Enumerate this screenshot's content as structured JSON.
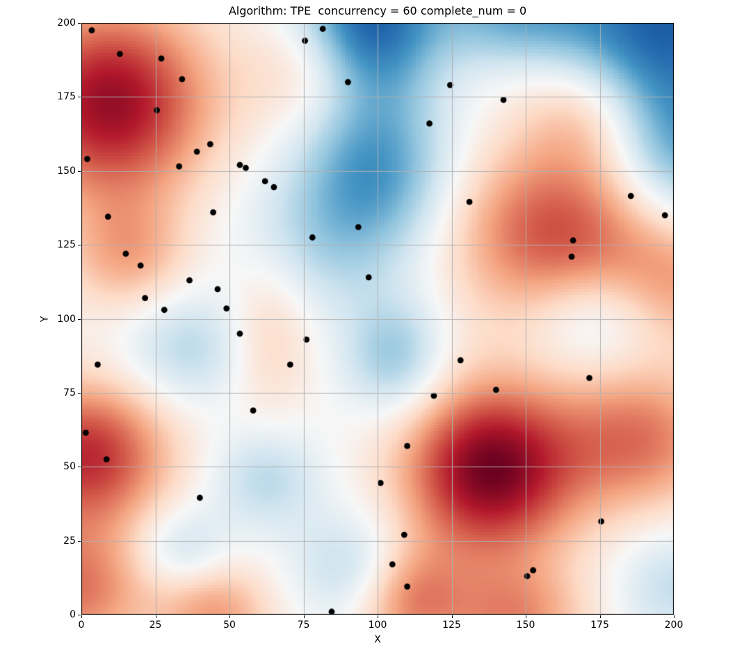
{
  "figure": {
    "background": "#ffffff"
  },
  "chart_data": {
    "type": "heatmap+scatter",
    "title": "Algorithm: TPE  concurrency = 60 complete_num = 0",
    "xlabel": "X",
    "ylabel": "Y",
    "xlim": [
      0,
      200
    ],
    "ylim": [
      0,
      200
    ],
    "xticks": [
      0,
      25,
      50,
      75,
      100,
      125,
      150,
      175,
      200
    ],
    "yticks": [
      0,
      25,
      50,
      75,
      100,
      125,
      150,
      175,
      200
    ],
    "grid": true,
    "grid_color": "#b0b0b0",
    "spine_color": "#000000",
    "marker": {
      "shape": "circle",
      "color": "#000000",
      "radius_px": 4.4
    },
    "scatter_points": [
      [
        3.5,
        197.5
      ],
      [
        13,
        189.5
      ],
      [
        27,
        188
      ],
      [
        34,
        181
      ],
      [
        25.5,
        170.5
      ],
      [
        81.5,
        198
      ],
      [
        75.5,
        194
      ],
      [
        90,
        180
      ],
      [
        2,
        154
      ],
      [
        43.5,
        159
      ],
      [
        39,
        156.5
      ],
      [
        33,
        151.5
      ],
      [
        53.5,
        152
      ],
      [
        55.5,
        151
      ],
      [
        62,
        146.5
      ],
      [
        65,
        144.5
      ],
      [
        44.5,
        136
      ],
      [
        9,
        134.5
      ],
      [
        15,
        122
      ],
      [
        20,
        118
      ],
      [
        36.5,
        113
      ],
      [
        21.5,
        107
      ],
      [
        28,
        103
      ],
      [
        49,
        103.5
      ],
      [
        46,
        110
      ],
      [
        78,
        127.5
      ],
      [
        93.5,
        131
      ],
      [
        97,
        114
      ],
      [
        124.5,
        179
      ],
      [
        142.5,
        174
      ],
      [
        117.5,
        166
      ],
      [
        131,
        139.5
      ],
      [
        185.5,
        141.5
      ],
      [
        197,
        135
      ],
      [
        166,
        126.5
      ],
      [
        165.5,
        121
      ],
      [
        53.5,
        95
      ],
      [
        76,
        93
      ],
      [
        70.5,
        84.5
      ],
      [
        5.5,
        84.5
      ],
      [
        58,
        69
      ],
      [
        1.5,
        61.5
      ],
      [
        8.5,
        52.5
      ],
      [
        40,
        39.5
      ],
      [
        84.5,
        1
      ],
      [
        128,
        86
      ],
      [
        171.5,
        80
      ],
      [
        140,
        76
      ],
      [
        119,
        74
      ],
      [
        110,
        57
      ],
      [
        101,
        44.5
      ],
      [
        175.5,
        31.5
      ],
      [
        109,
        27
      ],
      [
        105,
        17
      ],
      [
        110,
        9.5
      ],
      [
        152.5,
        15
      ],
      [
        150.5,
        13
      ]
    ],
    "heatmap_field_gaussians": [
      {
        "x": 10,
        "y": 173,
        "sx": 24,
        "sy": 24,
        "a": 0.88
      },
      {
        "x": 2,
        "y": 54,
        "sx": 20,
        "sy": 18,
        "a": 0.75
      },
      {
        "x": 138,
        "y": 49,
        "sx": 21,
        "sy": 21,
        "a": 0.97
      },
      {
        "x": 161,
        "y": 129,
        "sx": 26,
        "sy": 22,
        "a": 0.66
      },
      {
        "x": 80,
        "y": 183,
        "sx": 16,
        "sy": 14,
        "a": 0.28
      },
      {
        "x": 110,
        "y": 6,
        "sx": 13,
        "sy": 14,
        "a": 0.5
      },
      {
        "x": 45,
        "y": 0,
        "sx": 14,
        "sy": 13,
        "a": 0.42
      },
      {
        "x": -2,
        "y": 8,
        "sx": 18,
        "sy": 16,
        "a": 0.52
      },
      {
        "x": 189,
        "y": 59,
        "sx": 20,
        "sy": 18,
        "a": 0.52
      },
      {
        "x": 203,
        "y": 112,
        "sx": 16,
        "sy": 16,
        "a": 0.32
      },
      {
        "x": 16,
        "y": 121,
        "sx": 15,
        "sy": 14,
        "a": 0.35
      },
      {
        "x": 146,
        "y": -2,
        "sx": 18,
        "sy": 14,
        "a": 0.45
      },
      {
        "x": 63,
        "y": 95,
        "sx": 11,
        "sy": 20,
        "a": 0.26
      },
      {
        "x": 170,
        "y": 170,
        "sx": 16,
        "sy": 14,
        "a": 0.3
      },
      {
        "x": 97,
        "y": 200,
        "sx": 16,
        "sy": 22,
        "a": -0.85
      },
      {
        "x": 100,
        "y": 150,
        "sx": 18,
        "sy": 18,
        "a": -0.5
      },
      {
        "x": 196,
        "y": 199,
        "sx": 24,
        "sy": 24,
        "a": -0.8
      },
      {
        "x": 202,
        "y": 155,
        "sx": 16,
        "sy": 18,
        "a": -0.45
      },
      {
        "x": 36,
        "y": 90,
        "sx": 16,
        "sy": 14,
        "a": -0.3
      },
      {
        "x": 83,
        "y": 126,
        "sx": 22,
        "sy": 18,
        "a": -0.28
      },
      {
        "x": 94,
        "y": 16,
        "sx": 15,
        "sy": 13,
        "a": -0.32
      },
      {
        "x": 34,
        "y": 22,
        "sx": 11,
        "sy": 10,
        "a": -0.28
      },
      {
        "x": 62,
        "y": 46,
        "sx": 13,
        "sy": 12,
        "a": -0.28
      },
      {
        "x": 200,
        "y": 10,
        "sx": 14,
        "sy": 14,
        "a": -0.25
      },
      {
        "x": 173,
        "y": 100,
        "sx": 16,
        "sy": 13,
        "a": -0.28
      },
      {
        "x": 145,
        "y": 203,
        "sx": 20,
        "sy": 12,
        "a": -0.45
      },
      {
        "x": 106,
        "y": 87,
        "sx": 12,
        "sy": 14,
        "a": -0.4
      }
    ],
    "colormap": {
      "name": "RdBu_r",
      "stops": [
        "#053061",
        "#2166ac",
        "#4393c3",
        "#92c5de",
        "#d1e5f0",
        "#f7f7f7",
        "#fddbc7",
        "#f4a582",
        "#d6604d",
        "#b2182b",
        "#67001f"
      ]
    },
    "legend": null
  }
}
